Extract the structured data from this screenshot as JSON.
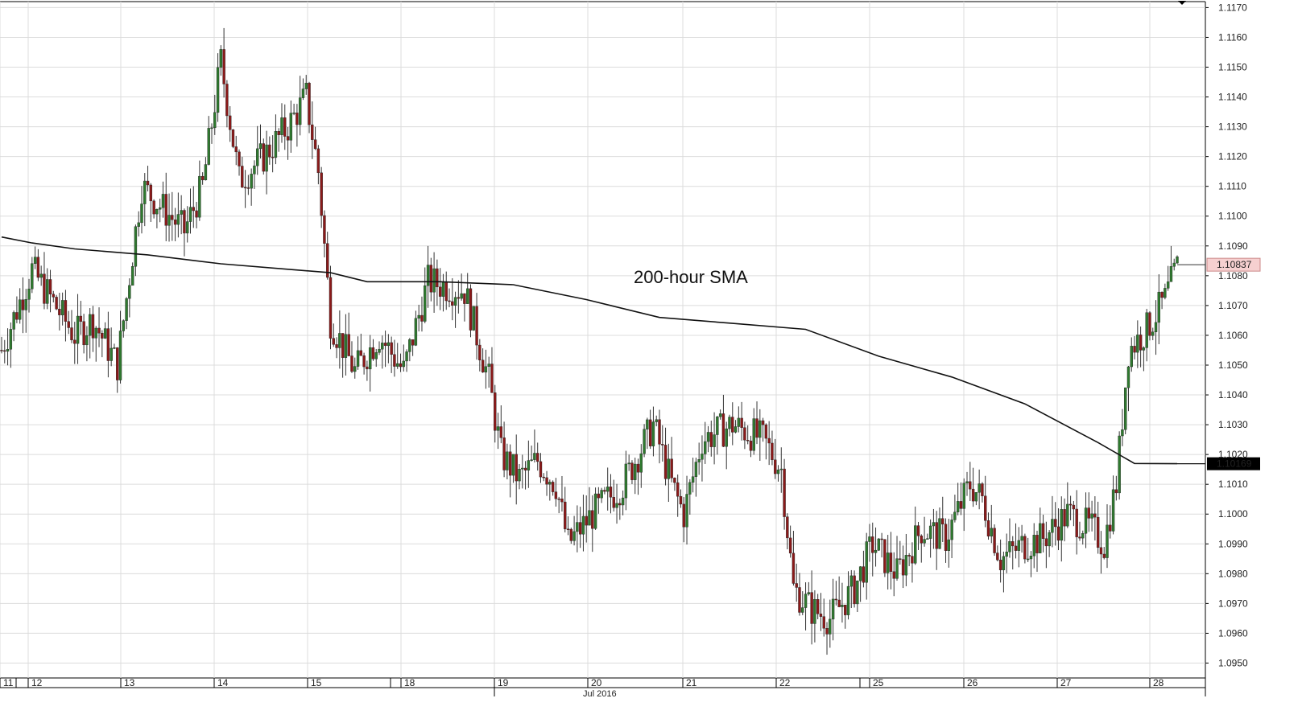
{
  "chart_data": {
    "type": "candlestick",
    "ylim": [
      1.0945,
      1.1172
    ],
    "y_ticks": [
      "1.0950",
      "1.0960",
      "1.0970",
      "1.0980",
      "1.0990",
      "1.1000",
      "1.1010",
      "1.1020",
      "1.1030",
      "1.1040",
      "1.1050",
      "1.1060",
      "1.1070",
      "1.1080",
      "1.1090",
      "1.1100",
      "1.1110",
      "1.1120",
      "1.1130",
      "1.1140",
      "1.1150",
      "1.1160",
      "1.1170"
    ],
    "x_ticks": [
      "11",
      "12",
      "13",
      "14",
      "15",
      "18",
      "19",
      "20",
      "21",
      "22",
      "25",
      "26",
      "27",
      "28"
    ],
    "month_label": "Jul 2016",
    "annotation": "200-hour SMA",
    "last_price_label": "1.10837",
    "last_price_value": 1.10837,
    "sma_price_label": "1.10169",
    "sma_price_value": 1.10169,
    "colors": {
      "up": "#2f7a2f",
      "down": "#8b1a1a",
      "sma": "#111111",
      "grid": "#dcdcdc",
      "last_price_bg": "#f6d0d0",
      "sma_price_bg": "#000000"
    },
    "grid": true,
    "candles_per_day": 24,
    "day_anchors": [
      {
        "hour": 0,
        "price": 1.1055
      },
      {
        "hour": 10,
        "price": 1.1082
      },
      {
        "hour": 24,
        "price": 1.106
      },
      {
        "hour": 30,
        "price": 1.1065
      },
      {
        "hour": 38,
        "price": 1.105
      },
      {
        "hour": 46,
        "price": 1.111
      },
      {
        "hour": 60,
        "price": 1.1095
      },
      {
        "hour": 66,
        "price": 1.111
      },
      {
        "hour": 72,
        "price": 1.1152
      },
      {
        "hour": 78,
        "price": 1.1112
      },
      {
        "hour": 86,
        "price": 1.112
      },
      {
        "hour": 94,
        "price": 1.113
      },
      {
        "hour": 100,
        "price": 1.114
      },
      {
        "hour": 104,
        "price": 1.1115
      },
      {
        "hour": 108,
        "price": 1.1065
      },
      {
        "hour": 116,
        "price": 1.1048
      },
      {
        "hour": 124,
        "price": 1.106
      },
      {
        "hour": 132,
        "price": 1.1048
      },
      {
        "hour": 140,
        "price": 1.1078
      },
      {
        "hour": 152,
        "price": 1.1075
      },
      {
        "hour": 160,
        "price": 1.1045
      },
      {
        "hour": 164,
        "price": 1.102
      },
      {
        "hour": 170,
        "price": 1.1012
      },
      {
        "hour": 176,
        "price": 1.1018
      },
      {
        "hour": 182,
        "price": 1.101
      },
      {
        "hour": 186,
        "price": 1.099
      },
      {
        "hour": 194,
        "price": 1.1
      },
      {
        "hour": 204,
        "price": 1.101
      },
      {
        "hour": 214,
        "price": 1.103
      },
      {
        "hour": 220,
        "price": 1.101
      },
      {
        "hour": 224,
        "price": 1.1
      },
      {
        "hour": 230,
        "price": 1.1025
      },
      {
        "hour": 240,
        "price": 1.103
      },
      {
        "hour": 250,
        "price": 1.1025
      },
      {
        "hour": 256,
        "price": 1.1015
      },
      {
        "hour": 260,
        "price": 1.0975
      },
      {
        "hour": 266,
        "price": 1.0968
      },
      {
        "hour": 272,
        "price": 1.0965
      },
      {
        "hour": 280,
        "price": 1.0975
      },
      {
        "hour": 286,
        "price": 1.099
      },
      {
        "hour": 294,
        "price": 1.098
      },
      {
        "hour": 302,
        "price": 1.0995
      },
      {
        "hour": 310,
        "price": 1.0992
      },
      {
        "hour": 318,
        "price": 1.101
      },
      {
        "hour": 322,
        "price": 1.1005
      },
      {
        "hour": 328,
        "price": 1.0985
      },
      {
        "hour": 336,
        "price": 1.099
      },
      {
        "hour": 342,
        "price": 1.0992
      },
      {
        "hour": 350,
        "price": 1.1
      },
      {
        "hour": 358,
        "price": 1.0995
      },
      {
        "hour": 362,
        "price": 1.099
      },
      {
        "hour": 366,
        "price": 1.101
      },
      {
        "hour": 370,
        "price": 1.1055
      },
      {
        "hour": 376,
        "price": 1.1062
      },
      {
        "hour": 382,
        "price": 1.1072
      },
      {
        "hour": 386,
        "price": 1.1083
      }
    ],
    "sma_series": [
      {
        "hour": 0,
        "price": 1.1093
      },
      {
        "hour": 10,
        "price": 1.1091
      },
      {
        "hour": 24,
        "price": 1.1089
      },
      {
        "hour": 48,
        "price": 1.1087
      },
      {
        "hour": 72,
        "price": 1.1084
      },
      {
        "hour": 96,
        "price": 1.1082
      },
      {
        "hour": 108,
        "price": 1.1081
      },
      {
        "hour": 120,
        "price": 1.1078
      },
      {
        "hour": 144,
        "price": 1.1078
      },
      {
        "hour": 168,
        "price": 1.1077
      },
      {
        "hour": 192,
        "price": 1.1072
      },
      {
        "hour": 216,
        "price": 1.1066
      },
      {
        "hour": 240,
        "price": 1.1064
      },
      {
        "hour": 264,
        "price": 1.1062
      },
      {
        "hour": 288,
        "price": 1.1053
      },
      {
        "hour": 312,
        "price": 1.1046
      },
      {
        "hour": 336,
        "price": 1.1037
      },
      {
        "hour": 360,
        "price": 1.1024
      },
      {
        "hour": 372,
        "price": 1.1017
      },
      {
        "hour": 386,
        "price": 1.10169
      }
    ]
  }
}
